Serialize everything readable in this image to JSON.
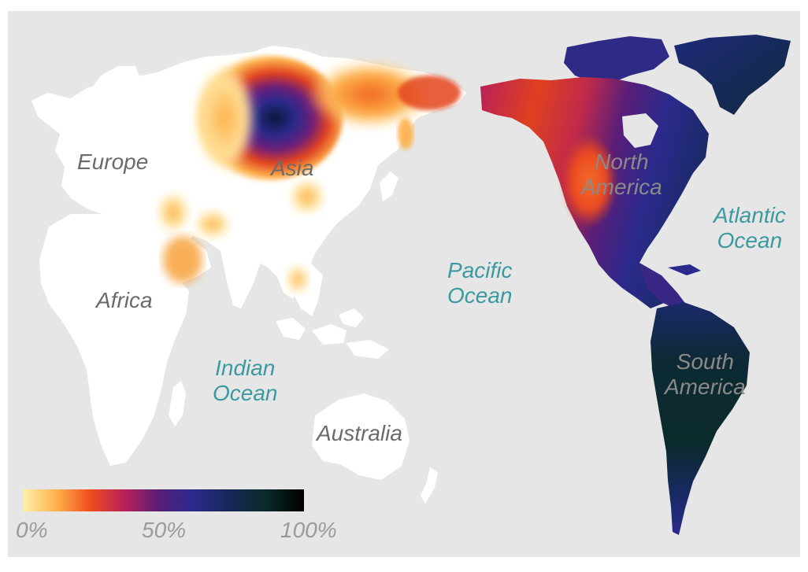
{
  "map": {
    "colors": {
      "ocean": "#e6e6e6",
      "land": "#ffffff",
      "scale": [
        "#ffe9a0",
        "#fdb04a",
        "#f04b1e",
        "#b8205a",
        "#5a1e78",
        "#2b2a8c",
        "#18285e",
        "#0b2a2a",
        "#000000"
      ]
    },
    "continents": {
      "europe": "Europe",
      "asia": "Asia",
      "africa": "Africa",
      "north_america": "North\nAmerica",
      "south_america": "South\nAmerica",
      "australia": "Australia"
    },
    "oceans": {
      "atlantic": "Atlantic\nOcean",
      "pacific": "Pacific\nOcean",
      "indian": "Indian\nOcean"
    },
    "legend": {
      "tick_min": "0%",
      "tick_mid": "50%",
      "tick_max": "100%"
    }
  }
}
